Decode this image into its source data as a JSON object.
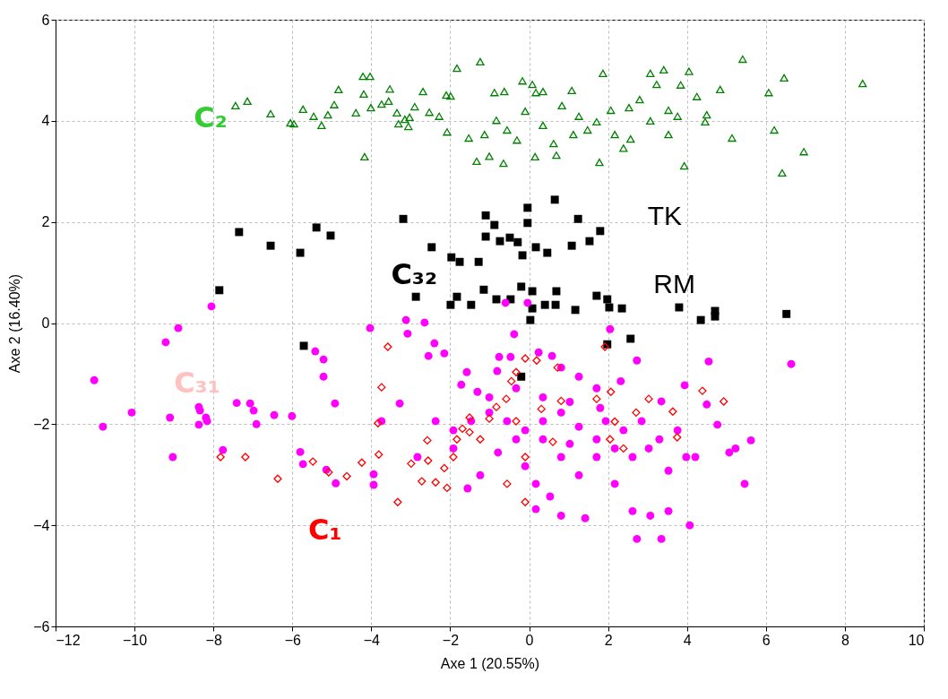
{
  "chart_data": {
    "type": "scatter",
    "xlabel": "Axe 1 (20.55%)",
    "ylabel": "Axe 2 (16.40%)",
    "xlim": [
      -12,
      10
    ],
    "ylim": [
      -6,
      6
    ],
    "xticks": [
      -12,
      -10,
      -8,
      -6,
      -4,
      -2,
      0,
      2,
      4,
      6,
      8,
      10
    ],
    "yticks": [
      -6,
      -4,
      -2,
      0,
      2,
      4,
      6
    ],
    "grid": true,
    "annotations": [
      "TK",
      "RM"
    ],
    "series": [
      {
        "name": "C₂",
        "color": "#008000",
        "marker": "triangle",
        "x": [
          -7.44,
          -7.14,
          -6.55,
          -6.05,
          -5.96,
          -5.73,
          -5.46,
          -5.26,
          -5.1,
          -4.94,
          -4.83,
          -4.39,
          -4.21,
          -4.17,
          -4.03,
          -4.19,
          -4.01,
          -3.74,
          -3.56,
          -3.53,
          -3.35,
          -3.31,
          -3.15,
          -3.03,
          -2.69,
          -2.53,
          -2.9,
          -3.06,
          -2.28,
          -2.1,
          -2.08,
          -1.99,
          -1.83,
          -1.53,
          -1.24,
          -1.13,
          -1.01,
          -0.88,
          -0.83,
          -0.63,
          -0.31,
          -0.17,
          -0.1,
          0.08,
          0.15,
          0.17,
          0.35,
          0.62,
          0.69,
          0.83,
          1.08,
          1.12,
          1.48,
          1.71,
          1.78,
          1.87,
          2.07,
          2.53,
          2.57,
          2.8,
          3.07,
          3.23,
          3.41,
          3.53,
          3.84,
          3.93,
          4.05,
          4.25,
          4.46,
          4.5,
          4.84,
          5.14,
          5.41,
          6.07,
          6.21,
          6.46,
          6.41,
          6.96,
          8.45,
          -0.56,
          0.35,
          1.26,
          2.17,
          3.07,
          3.76,
          -1.33,
          -0.65,
          2.39,
          3.53
        ],
        "values": [
          4.3,
          4.39,
          4.14,
          3.96,
          3.94,
          4.23,
          4.09,
          3.91,
          4.12,
          4.32,
          4.62,
          4.16,
          4.88,
          3.29,
          4.88,
          4.53,
          4.26,
          4.33,
          4.39,
          4.63,
          4.16,
          3.94,
          4.03,
          4.07,
          4.58,
          4.17,
          4.28,
          3.89,
          4.09,
          4.51,
          3.78,
          4.49,
          5.04,
          3.66,
          5.17,
          3.73,
          3.3,
          4.56,
          4.01,
          4.58,
          3.62,
          4.79,
          4.19,
          4.72,
          3.29,
          4.56,
          4.58,
          3.55,
          3.32,
          4.3,
          4.6,
          3.73,
          3.82,
          3.98,
          3.18,
          4.94,
          4.21,
          4.26,
          3.64,
          4.42,
          4.94,
          4.72,
          5.01,
          4.21,
          4.71,
          3.11,
          4.98,
          4.48,
          3.98,
          4.12,
          4.62,
          3.66,
          5.22,
          4.56,
          3.82,
          4.85,
          2.97,
          3.39,
          4.74,
          3.82,
          3.91,
          4.09,
          3.73,
          4.0,
          4.09,
          3.2,
          3.16,
          3.46,
          3.73
        ]
      },
      {
        "name": "C₃₂",
        "color": "#000000",
        "marker": "square",
        "x": [
          -7.35,
          -7.85,
          -6.55,
          -5.8,
          -5.39,
          -5.03,
          -5.71,
          -3.19,
          -2.87,
          -2.47,
          -1.97,
          -1.83,
          -1.76,
          -1.99,
          -1.28,
          -1.1,
          -0.88,
          -1.1,
          -0.74,
          -0.49,
          -0.29,
          -0.04,
          -0.04,
          -0.17,
          0.17,
          0.46,
          0.65,
          1.08,
          1.24,
          1.53,
          1.8,
          -1.15,
          -0.83,
          -0.47,
          -0.2,
          0.08,
          0.4,
          0.67,
          0.69,
          1.17,
          1.71,
          1.98,
          2.03,
          2.35,
          2.57,
          3.8,
          4.35,
          4.71,
          4.71,
          6.52,
          -1.47,
          0.03,
          1.98,
          -0.2,
          0.08
        ],
        "values": [
          1.8,
          0.65,
          1.53,
          1.39,
          1.89,
          1.73,
          -0.45,
          2.06,
          0.52,
          1.5,
          1.3,
          0.52,
          1.21,
          0.36,
          1.21,
          2.13,
          1.94,
          1.71,
          1.62,
          1.69,
          1.6,
          2.28,
          1.98,
          1.34,
          1.5,
          1.39,
          2.44,
          1.53,
          2.06,
          1.62,
          1.82,
          0.66,
          0.47,
          0.47,
          0.72,
          0.29,
          0.36,
          0.36,
          0.63,
          0.26,
          0.54,
          0.47,
          0.31,
          0.29,
          -0.31,
          0.31,
          0.06,
          0.24,
          0.13,
          0.18,
          0.36,
          0.06,
          -0.42,
          -1.06,
          0.63
        ]
      },
      {
        "name": "C₃₁",
        "color": "#ff00ff",
        "marker": "circle",
        "x": [
          -11.02,
          -10.8,
          -10.07,
          -9.21,
          -8.89,
          -8.05,
          -9.1,
          -9.03,
          -8.37,
          -8.34,
          -8.19,
          -8.16,
          -8.37,
          -7.76,
          -7.41,
          -7.07,
          -6.98,
          -6.91,
          -6.46,
          -6.01,
          -5.8,
          -5.42,
          -5.21,
          -5.21,
          -4.92,
          -5.73,
          -5.14,
          -4.9,
          -4.03,
          -3.94,
          -3.94,
          -3.12,
          -3.08,
          -2.65,
          -2.4,
          -2.55,
          -2.15,
          -1.58,
          -1.72,
          -1.31,
          -0.76,
          -0.81,
          -0.47,
          -0.38,
          -0.04,
          -0.6,
          0.24,
          0.58,
          0.81,
          1.26,
          1.8,
          2.32,
          2.05,
          2.73,
          3.35,
          3.94,
          4.55,
          4.5,
          5.23,
          5.07,
          5.62,
          5.46,
          6.64,
          4.77,
          3.98,
          3.03,
          2.62,
          2.17,
          1.71,
          1.26,
          0.81,
          0.35,
          -0.1,
          -0.56,
          -1.01,
          -1.47,
          -1.92,
          -2.37,
          -3.28,
          -3.74,
          -2.83,
          -0.1,
          0.81,
          1.26,
          1.71,
          2.17,
          2.62,
          3.07,
          3.53,
          3.35,
          2.73,
          4.07,
          0.17,
          0.53,
          0.17,
          1.42,
          0.81,
          -1.24,
          -1.56,
          -1.92,
          -0.79,
          -0.33,
          0.35,
          1.03,
          1.94,
          2.39,
          2.85,
          3.3,
          3.76,
          4.21,
          3.53,
          -1.01,
          -0.33,
          0.35,
          1.03,
          1.71
        ],
        "values": [
          -1.13,
          -2.05,
          -1.77,
          -0.38,
          -0.1,
          0.33,
          -1.87,
          -2.65,
          -1.66,
          -1.73,
          -1.87,
          -1.94,
          -2.01,
          -2.51,
          -1.58,
          -1.59,
          -1.73,
          -2.0,
          -1.82,
          -1.84,
          -2.55,
          -0.56,
          -0.72,
          -1.06,
          -1.59,
          -2.79,
          -2.9,
          -3.17,
          -0.1,
          -2.99,
          -3.2,
          0.06,
          -0.21,
          0.01,
          -0.4,
          -0.65,
          -0.6,
          -0.97,
          -1.22,
          -1.36,
          -0.67,
          -0.95,
          -0.67,
          -0.22,
          0.4,
          0.4,
          -0.58,
          -0.65,
          -0.88,
          -1.06,
          -1.68,
          -1.15,
          -0.12,
          -0.74,
          -1.55,
          -1.23,
          -0.76,
          -1.61,
          -2.48,
          -2.56,
          -2.32,
          -3.18,
          -0.81,
          -2.01,
          -2.65,
          -2.48,
          -2.65,
          -2.48,
          -2.3,
          -2.05,
          -1.77,
          -1.94,
          -2.12,
          -1.94,
          -1.77,
          -1.94,
          -2.12,
          -1.94,
          -1.59,
          -1.94,
          -2.65,
          -2.83,
          -2.65,
          -3.01,
          -2.65,
          -3.18,
          -3.72,
          -3.81,
          -3.72,
          -4.27,
          -4.27,
          -4.0,
          -3.68,
          -3.43,
          -3.18,
          -3.86,
          -3.81,
          -3.01,
          -3.27,
          -2.48,
          -2.56,
          -2.3,
          -2.3,
          -2.39,
          -1.94,
          -2.12,
          -1.94,
          -2.3,
          -2.12,
          -2.65,
          -2.92,
          -1.47,
          -1.29,
          -1.47,
          -1.56,
          -1.29
        ]
      },
      {
        "name": "C₁",
        "color": "#ff0000",
        "marker": "diamond",
        "x": [
          -7.82,
          -7.19,
          -6.37,
          -5.48,
          -5.08,
          -4.62,
          -4.24,
          -3.83,
          -3.81,
          -3.74,
          -3.58,
          -3.33,
          -2.99,
          -2.72,
          -2.58,
          -2.56,
          -2.37,
          -2.15,
          -1.92,
          -2.08,
          -1.83,
          -1.69,
          -1.51,
          -1.51,
          -1.01,
          -0.83,
          -0.58,
          -0.45,
          -0.33,
          -0.1,
          0.19,
          0.31,
          0.6,
          0.72,
          0.81,
          1.92,
          2.07,
          2.17,
          2.71,
          3.03,
          3.64,
          4.39,
          4.93,
          3.75,
          -0.1,
          -0.56,
          -0.1,
          -0.33,
          -1.24,
          2.05,
          2.39,
          1.71
        ],
        "values": [
          -2.65,
          -2.65,
          -3.08,
          -2.74,
          -2.95,
          -3.03,
          -2.76,
          -1.98,
          -2.6,
          -1.27,
          -0.47,
          -3.54,
          -2.78,
          -3.13,
          -2.32,
          -2.72,
          -3.15,
          -2.87,
          -2.65,
          -3.26,
          -2.3,
          -2.09,
          -1.87,
          -2.16,
          -1.89,
          -1.66,
          -1.5,
          -1.15,
          -0.97,
          -0.7,
          -0.74,
          -1.7,
          -2.35,
          -0.88,
          -1.54,
          -0.47,
          -1.36,
          -1.95,
          -1.77,
          -1.5,
          -1.75,
          -1.34,
          -1.55,
          -2.26,
          -2.65,
          -3.18,
          -3.54,
          -1.94,
          -2.3,
          -2.3,
          -2.48,
          -1.5
        ]
      }
    ]
  }
}
